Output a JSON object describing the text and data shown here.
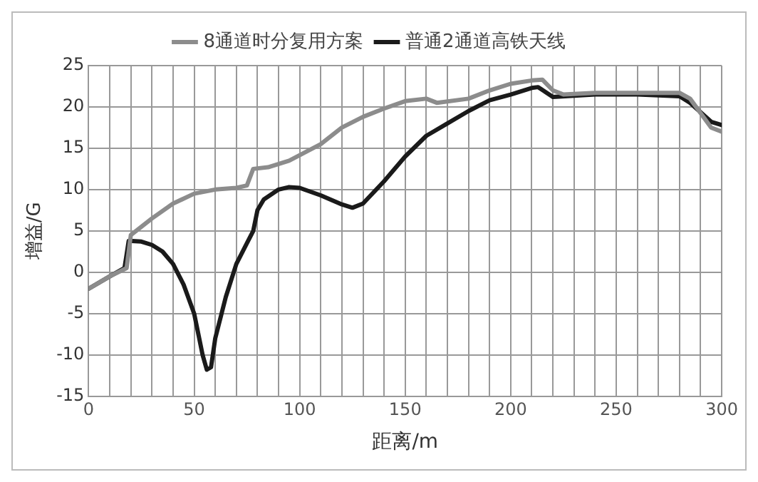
{
  "chart_data": {
    "type": "line",
    "xlabel": "距离/m",
    "ylabel": "增益/G",
    "xlim": [
      0,
      300
    ],
    "ylim": [
      -15,
      25
    ],
    "xticks": [
      0,
      {
        "value": 10,
        "label": null
      },
      {
        "value": 20,
        "label": null
      },
      {
        "value": 30,
        "label": null
      },
      {
        "value": 40,
        "label": null
      },
      50,
      {
        "value": 60,
        "label": null
      },
      {
        "value": 70,
        "label": null
      },
      {
        "value": 80,
        "label": null
      },
      {
        "value": 90,
        "label": null
      },
      100,
      {
        "value": 110,
        "label": null
      },
      {
        "value": 120,
        "label": null
      },
      {
        "value": 130,
        "label": null
      },
      {
        "value": 140,
        "label": null
      },
      150,
      {
        "value": 160,
        "label": null
      },
      {
        "value": 170,
        "label": null
      },
      {
        "value": 180,
        "label": null
      },
      {
        "value": 190,
        "label": null
      },
      200,
      {
        "value": 210,
        "label": null
      },
      {
        "value": 220,
        "label": null
      },
      {
        "value": 230,
        "label": null
      },
      {
        "value": 240,
        "label": null
      },
      250,
      {
        "value": 260,
        "label": null
      },
      {
        "value": 270,
        "label": null
      },
      {
        "value": 280,
        "label": null
      },
      {
        "value": 290,
        "label": null
      },
      300
    ],
    "yticks": [
      -15,
      -10,
      -5,
      0,
      5,
      10,
      15,
      20,
      25
    ],
    "grid": true,
    "legend": "top",
    "marker": "none",
    "line_style": "solid",
    "series": [
      {
        "name": "8通道时分复用方案",
        "color": "#8c8c8c",
        "x": [
          0,
          10,
          18,
          20,
          30,
          40,
          50,
          60,
          70,
          75,
          78,
          85,
          95,
          110,
          120,
          130,
          140,
          150,
          160,
          165,
          180,
          190,
          200,
          210,
          215,
          220,
          225,
          240,
          260,
          280,
          285,
          295,
          300
        ],
        "values": [
          -2,
          -0.5,
          0.5,
          4.5,
          6.5,
          8.3,
          9.5,
          10,
          10.2,
          10.5,
          12.5,
          12.7,
          13.5,
          15.5,
          17.5,
          18.8,
          19.8,
          20.7,
          21,
          20.5,
          21,
          22,
          22.8,
          23.2,
          23.3,
          22,
          21.5,
          21.7,
          21.7,
          21.7,
          21,
          17.5,
          17
        ]
      },
      {
        "name": "普通2通道高铁天线",
        "color": "#1a1a1a",
        "x": [
          0,
          10,
          17,
          19,
          25,
          30,
          35,
          40,
          45,
          50,
          54,
          56,
          58,
          60,
          65,
          70,
          75,
          78,
          80,
          83,
          90,
          95,
          100,
          110,
          120,
          125,
          130,
          140,
          150,
          160,
          170,
          180,
          190,
          200,
          210,
          213,
          220,
          240,
          260,
          280,
          285,
          295,
          300
        ],
        "values": [
          -2,
          -0.5,
          0.5,
          3.8,
          3.7,
          3.3,
          2.5,
          1,
          -1.5,
          -5,
          -10,
          -11.8,
          -11.5,
          -8,
          -3,
          1,
          3.5,
          5,
          7.5,
          8.8,
          10,
          10.3,
          10.2,
          9.3,
          8.2,
          7.8,
          8.3,
          11,
          14,
          16.5,
          18,
          19.5,
          20.8,
          21.5,
          22.3,
          22.4,
          21.2,
          21.5,
          21.5,
          21.3,
          20.5,
          18.2,
          17.8
        ]
      }
    ]
  }
}
